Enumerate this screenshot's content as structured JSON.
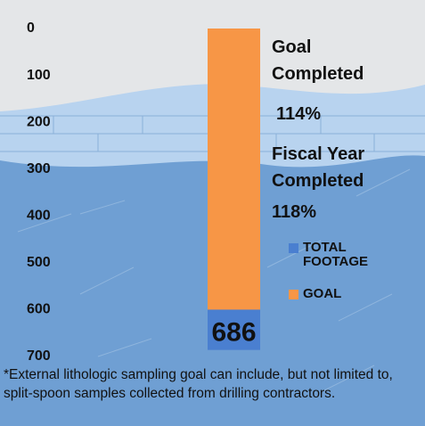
{
  "chart_data": {
    "type": "bar",
    "categories": [
      null
    ],
    "series": [
      {
        "name": "TOTAL FOOTAGE",
        "color": "#4a7fd0",
        "values": [
          686
        ]
      },
      {
        "name": "GOAL",
        "color": "#f79646",
        "values": [
          600
        ]
      }
    ],
    "ylim": [
      0,
      700
    ],
    "yticks": [
      0,
      100,
      200,
      300,
      400,
      500,
      600,
      700
    ],
    "inverted": true,
    "annotations": [
      "Goal Completed",
      "114%",
      "Fiscal Year Completed",
      "118%"
    ],
    "footnote": "*External lithologic sampling goal can include, but not limited to, split-spoon samples collected from drilling contractors."
  }
}
